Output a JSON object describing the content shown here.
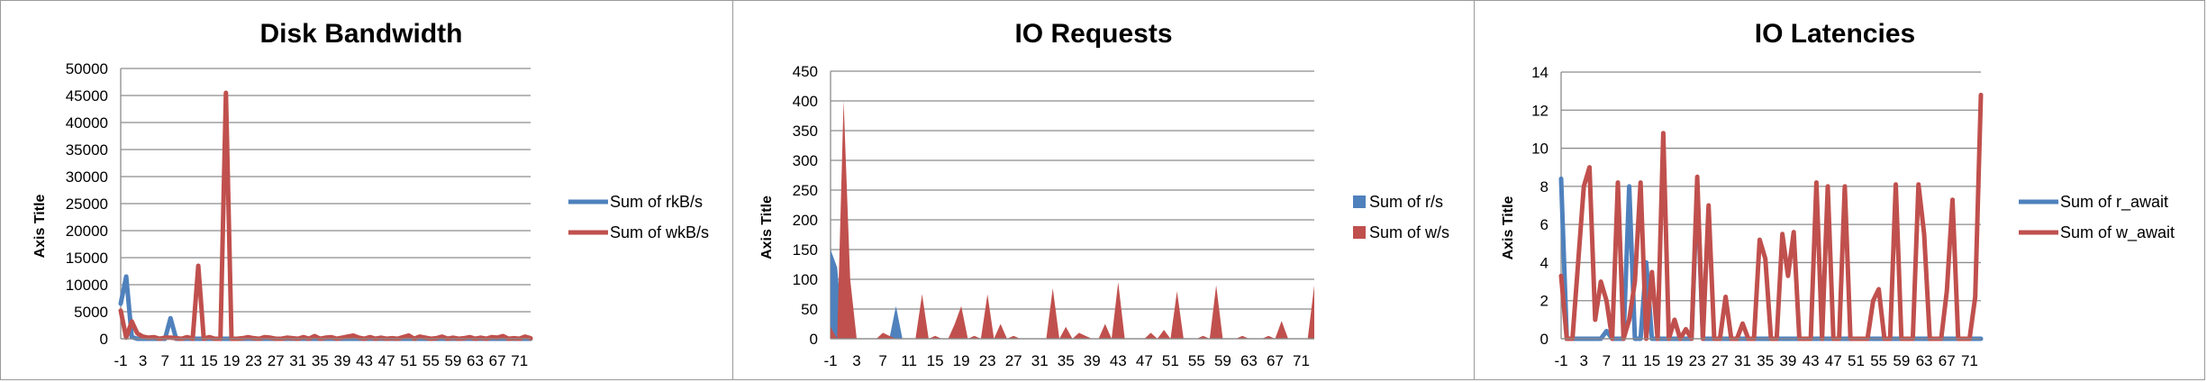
{
  "colors": {
    "blue": "#4f81bd",
    "red": "#c0504d",
    "grid": "#8c8c8c"
  },
  "x_tick_labels": [
    "-1",
    "3",
    "7",
    "11",
    "15",
    "19",
    "23",
    "27",
    "31",
    "35",
    "39",
    "43",
    "47",
    "51",
    "55",
    "59",
    "63",
    "67",
    "71"
  ],
  "chart_data": [
    {
      "type": "line",
      "title": "Disk Bandwidth",
      "ylabel": "Axis Title",
      "ylim": [
        0,
        50000
      ],
      "yticks": [
        0,
        5000,
        10000,
        15000,
        20000,
        25000,
        30000,
        35000,
        40000,
        45000,
        50000
      ],
      "x": [
        -1,
        0,
        1,
        2,
        3,
        4,
        5,
        6,
        7,
        8,
        9,
        10,
        11,
        12,
        13,
        14,
        15,
        16,
        17,
        18,
        19,
        20,
        21,
        22,
        23,
        24,
        25,
        26,
        27,
        28,
        29,
        30,
        31,
        32,
        33,
        34,
        35,
        36,
        37,
        38,
        39,
        40,
        41,
        42,
        43,
        44,
        45,
        46,
        47,
        48,
        49,
        50,
        51,
        52,
        53,
        54,
        55,
        56,
        57,
        58,
        59,
        60,
        61,
        62,
        63,
        64,
        65,
        66,
        67,
        68,
        69,
        70,
        71,
        72,
        73
      ],
      "legend_position": "right",
      "series": [
        {
          "name": "Sum of rkB/s",
          "color": "#4f81bd",
          "values": [
            6500,
            11500,
            300,
            0,
            0,
            0,
            0,
            0,
            0,
            3800,
            0,
            0,
            0,
            0,
            0,
            0,
            0,
            0,
            0,
            0,
            0,
            0,
            0,
            0,
            0,
            0,
            0,
            0,
            0,
            0,
            0,
            0,
            0,
            0,
            0,
            0,
            0,
            0,
            0,
            0,
            0,
            0,
            0,
            0,
            0,
            0,
            0,
            0,
            0,
            0,
            0,
            0,
            0,
            0,
            0,
            0,
            0,
            0,
            0,
            0,
            0,
            0,
            0,
            0,
            0,
            0,
            0,
            0,
            0,
            0,
            0,
            0,
            0,
            0,
            0
          ]
        },
        {
          "name": "Sum of wkB/s",
          "color": "#c0504d",
          "values": [
            5200,
            200,
            3200,
            1000,
            400,
            200,
            300,
            0,
            200,
            200,
            100,
            0,
            300,
            0,
            13500,
            0,
            300,
            0,
            0,
            45500,
            0,
            0,
            100,
            300,
            100,
            0,
            300,
            200,
            0,
            0,
            200,
            100,
            0,
            300,
            0,
            500,
            0,
            200,
            300,
            0,
            200,
            400,
            600,
            200,
            0,
            300,
            0,
            200,
            0,
            100,
            0,
            300,
            600,
            0,
            400,
            200,
            0,
            100,
            400,
            0,
            200,
            0,
            100,
            300,
            0,
            200,
            0,
            300,
            200,
            500,
            0,
            100,
            0,
            400,
            100
          ]
        }
      ]
    },
    {
      "type": "area",
      "title": "IO Requests",
      "ylabel": "Axis Title",
      "ylim": [
        0,
        450
      ],
      "yticks": [
        0,
        50,
        100,
        150,
        200,
        250,
        300,
        350,
        400,
        450
      ],
      "x": [
        -1,
        0,
        1,
        2,
        3,
        4,
        5,
        6,
        7,
        8,
        9,
        10,
        11,
        12,
        13,
        14,
        15,
        16,
        17,
        18,
        19,
        20,
        21,
        22,
        23,
        24,
        25,
        26,
        27,
        28,
        29,
        30,
        31,
        32,
        33,
        34,
        35,
        36,
        37,
        38,
        39,
        40,
        41,
        42,
        43,
        44,
        45,
        46,
        47,
        48,
        49,
        50,
        51,
        52,
        53,
        54,
        55,
        56,
        57,
        58,
        59,
        60,
        61,
        62,
        63,
        64,
        65,
        66,
        67,
        68,
        69,
        70,
        71,
        72,
        73
      ],
      "legend_position": "right",
      "series": [
        {
          "name": "Sum of r/s",
          "color": "#4f81bd",
          "values": [
            150,
            120,
            0,
            0,
            0,
            0,
            0,
            0,
            0,
            0,
            55,
            0,
            0,
            0,
            0,
            0,
            0,
            0,
            0,
            0,
            0,
            0,
            0,
            0,
            0,
            0,
            0,
            0,
            0,
            0,
            0,
            0,
            0,
            0,
            0,
            0,
            0,
            0,
            0,
            0,
            0,
            0,
            0,
            0,
            0,
            0,
            0,
            0,
            0,
            0,
            0,
            0,
            0,
            0,
            0,
            0,
            0,
            0,
            0,
            0,
            0,
            0,
            0,
            0,
            0,
            0,
            0,
            0,
            0,
            0,
            0,
            0,
            0,
            0,
            0
          ]
        },
        {
          "name": "Sum of w/s",
          "color": "#c0504d",
          "values": [
            20,
            0,
            400,
            100,
            0,
            0,
            0,
            0,
            10,
            5,
            0,
            0,
            0,
            0,
            75,
            0,
            5,
            0,
            0,
            25,
            55,
            0,
            5,
            0,
            75,
            0,
            25,
            0,
            5,
            0,
            0,
            0,
            0,
            0,
            85,
            0,
            20,
            0,
            10,
            5,
            0,
            0,
            25,
            0,
            95,
            0,
            0,
            0,
            0,
            10,
            0,
            15,
            0,
            80,
            0,
            0,
            0,
            5,
            0,
            90,
            0,
            0,
            0,
            5,
            0,
            0,
            0,
            5,
            0,
            30,
            0,
            0,
            0,
            0,
            90
          ]
        }
      ]
    },
    {
      "type": "line",
      "title": "IO Latencies",
      "ylabel": "Axis Title",
      "ylim": [
        0,
        14
      ],
      "yticks": [
        0,
        2,
        4,
        6,
        8,
        10,
        12,
        14
      ],
      "x": [
        -1,
        0,
        1,
        2,
        3,
        4,
        5,
        6,
        7,
        8,
        9,
        10,
        11,
        12,
        13,
        14,
        15,
        16,
        17,
        18,
        19,
        20,
        21,
        22,
        23,
        24,
        25,
        26,
        27,
        28,
        29,
        30,
        31,
        32,
        33,
        34,
        35,
        36,
        37,
        38,
        39,
        40,
        41,
        42,
        43,
        44,
        45,
        46,
        47,
        48,
        49,
        50,
        51,
        52,
        53,
        54,
        55,
        56,
        57,
        58,
        59,
        60,
        61,
        62,
        63,
        64,
        65,
        66,
        67,
        68,
        69,
        70,
        71,
        72,
        73
      ],
      "legend_position": "right",
      "series": [
        {
          "name": "Sum of r_await",
          "color": "#4f81bd",
          "values": [
            8.4,
            0,
            0,
            0,
            0,
            0,
            0,
            0,
            0.4,
            0,
            0,
            0,
            8,
            0,
            0,
            4,
            0,
            0,
            0,
            0,
            0,
            0,
            0,
            0,
            8,
            0,
            0,
            0,
            0,
            0,
            0,
            0,
            0,
            0,
            0,
            0,
            0,
            0,
            0,
            0,
            0,
            0,
            0,
            0,
            0,
            0,
            0,
            0,
            0,
            0,
            0,
            0,
            0,
            0,
            0,
            0,
            0,
            0,
            0,
            0,
            0,
            0,
            0,
            0,
            0,
            0,
            0,
            0,
            0,
            0,
            0,
            0,
            0,
            0,
            0
          ]
        },
        {
          "name": "Sum of w_await",
          "color": "#c0504d",
          "values": [
            3.3,
            0,
            0,
            4,
            8,
            9,
            1,
            3,
            2,
            0,
            8.2,
            0,
            1,
            3,
            8.2,
            0,
            3.5,
            0,
            10.8,
            0,
            1,
            0,
            0.5,
            0,
            8.5,
            0,
            7,
            0,
            0,
            2.2,
            0,
            0,
            0.8,
            0,
            0,
            5.2,
            4.2,
            0,
            0,
            5.5,
            3.3,
            5.6,
            0,
            0,
            0,
            8.2,
            0,
            8,
            0,
            0,
            8,
            0,
            0,
            0,
            0,
            2,
            2.6,
            0,
            0,
            8.1,
            0,
            0,
            0,
            8.1,
            5.5,
            0,
            0,
            0,
            2.5,
            7.3,
            0,
            0,
            0,
            2.2,
            12.8
          ]
        }
      ]
    }
  ]
}
